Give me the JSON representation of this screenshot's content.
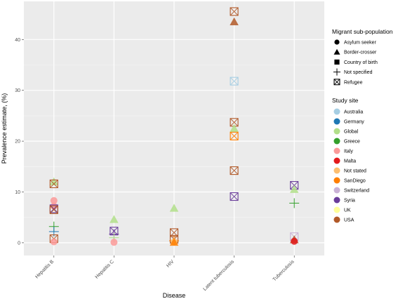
{
  "chart_data": {
    "type": "scatter",
    "xlabel": "Disease",
    "ylabel": "Prevalence estimate, (%)",
    "categories": [
      "Hepatitis B",
      "Hepatitis C",
      "HIV",
      "Latent tuberculosis",
      "Tuberculosis"
    ],
    "yticks": [
      0,
      10,
      20,
      30,
      40
    ],
    "ylim": [
      -2.5,
      47.5
    ],
    "grid": true,
    "legend_position": "right",
    "shape_legend": {
      "title": "Migrant sub-population",
      "items": [
        {
          "label": "Asylum seeker",
          "shape": "circle"
        },
        {
          "label": "Border-crosser",
          "shape": "triangle"
        },
        {
          "label": "Country of birth",
          "shape": "square"
        },
        {
          "label": "Not specified",
          "shape": "plus"
        },
        {
          "label": "Refugee",
          "shape": "boxx"
        }
      ]
    },
    "color_legend": {
      "title": "Study site",
      "items": [
        {
          "label": "Australia",
          "color": "#A6CEE3"
        },
        {
          "label": "Germany",
          "color": "#1F78B4"
        },
        {
          "label": "Global",
          "color": "#B2DF8A"
        },
        {
          "label": "Greece",
          "color": "#33A02C"
        },
        {
          "label": "Italy",
          "color": "#FB9A99"
        },
        {
          "label": "Malta",
          "color": "#E31A1C"
        },
        {
          "label": "Not stated",
          "color": "#FDBF6F"
        },
        {
          "label": "SanDiego",
          "color": "#FF7F00"
        },
        {
          "label": "Switzerland",
          "color": "#CAB2D6"
        },
        {
          "label": "Syria",
          "color": "#6A3D9A"
        },
        {
          "label": "UK",
          "color": "#FFFF99"
        },
        {
          "label": "USA",
          "color": "#B15928"
        }
      ]
    },
    "points": [
      {
        "x": "Hepatitis B",
        "y": 12.0,
        "shape": "triangle",
        "site": "Global"
      },
      {
        "x": "Hepatitis B",
        "y": 11.6,
        "shape": "boxx",
        "site": "USA"
      },
      {
        "x": "Hepatitis B",
        "y": 8.3,
        "shape": "circle",
        "site": "Italy"
      },
      {
        "x": "Hepatitis B",
        "y": 7.2,
        "shape": "circle",
        "site": "Italy"
      },
      {
        "x": "Hepatitis B",
        "y": 6.7,
        "shape": "boxx",
        "site": "Syria"
      },
      {
        "x": "Hepatitis B",
        "y": 6.5,
        "shape": "boxx",
        "site": "USA"
      },
      {
        "x": "Hepatitis B",
        "y": 3.2,
        "shape": "plus",
        "site": "Greece"
      },
      {
        "x": "Hepatitis B",
        "y": 2.2,
        "shape": "plus",
        "site": "Germany"
      },
      {
        "x": "Hepatitis B",
        "y": 0.8,
        "shape": "boxx",
        "site": "USA"
      },
      {
        "x": "Hepatitis B",
        "y": 0.2,
        "shape": "circle",
        "site": "Italy"
      },
      {
        "x": "Hepatitis C",
        "y": 4.6,
        "shape": "triangle",
        "site": "Global"
      },
      {
        "x": "Hepatitis C",
        "y": 2.3,
        "shape": "boxx",
        "site": "Syria"
      },
      {
        "x": "Hepatitis C",
        "y": 1.7,
        "shape": "plus",
        "site": "Syria"
      },
      {
        "x": "Hepatitis C",
        "y": 1.0,
        "shape": "plus",
        "site": "Global"
      },
      {
        "x": "Hepatitis C",
        "y": 0.1,
        "shape": "circle",
        "site": "Italy"
      },
      {
        "x": "HIV",
        "y": 6.8,
        "shape": "triangle",
        "site": "Global"
      },
      {
        "x": "HIV",
        "y": 2.0,
        "shape": "boxx",
        "site": "USA"
      },
      {
        "x": "HIV",
        "y": 0.7,
        "shape": "boxx",
        "site": "USA"
      },
      {
        "x": "HIV",
        "y": 0.4,
        "shape": "plus",
        "site": "SanDiego"
      },
      {
        "x": "HIV",
        "y": 0.2,
        "shape": "circle",
        "site": "Not stated"
      },
      {
        "x": "HIV",
        "y": 0.1,
        "shape": "triangle",
        "site": "SanDiego"
      },
      {
        "x": "Latent tuberculosis",
        "y": 45.5,
        "shape": "boxx",
        "site": "USA"
      },
      {
        "x": "Latent tuberculosis",
        "y": 43.5,
        "shape": "triangle",
        "site": "USA"
      },
      {
        "x": "Latent tuberculosis",
        "y": 31.8,
        "shape": "boxx",
        "site": "Australia"
      },
      {
        "x": "Latent tuberculosis",
        "y": 23.7,
        "shape": "boxx",
        "site": "USA"
      },
      {
        "x": "Latent tuberculosis",
        "y": 22.5,
        "shape": "triangle",
        "site": "Global"
      },
      {
        "x": "Latent tuberculosis",
        "y": 21.0,
        "shape": "boxx",
        "site": "SanDiego"
      },
      {
        "x": "Latent tuberculosis",
        "y": 14.2,
        "shape": "boxx",
        "site": "USA"
      },
      {
        "x": "Latent tuberculosis",
        "y": 9.1,
        "shape": "boxx",
        "site": "Syria"
      },
      {
        "x": "Tuberculosis",
        "y": 11.3,
        "shape": "boxx",
        "site": "Syria"
      },
      {
        "x": "Tuberculosis",
        "y": 10.5,
        "shape": "triangle",
        "site": "Global"
      },
      {
        "x": "Tuberculosis",
        "y": 7.8,
        "shape": "plus",
        "site": "Greece"
      },
      {
        "x": "Tuberculosis",
        "y": 1.2,
        "shape": "boxx",
        "site": "Switzerland"
      },
      {
        "x": "Tuberculosis",
        "y": 0.6,
        "shape": "triangle",
        "site": "USA"
      },
      {
        "x": "Tuberculosis",
        "y": 0.3,
        "shape": "circle",
        "site": "Malta"
      }
    ]
  }
}
